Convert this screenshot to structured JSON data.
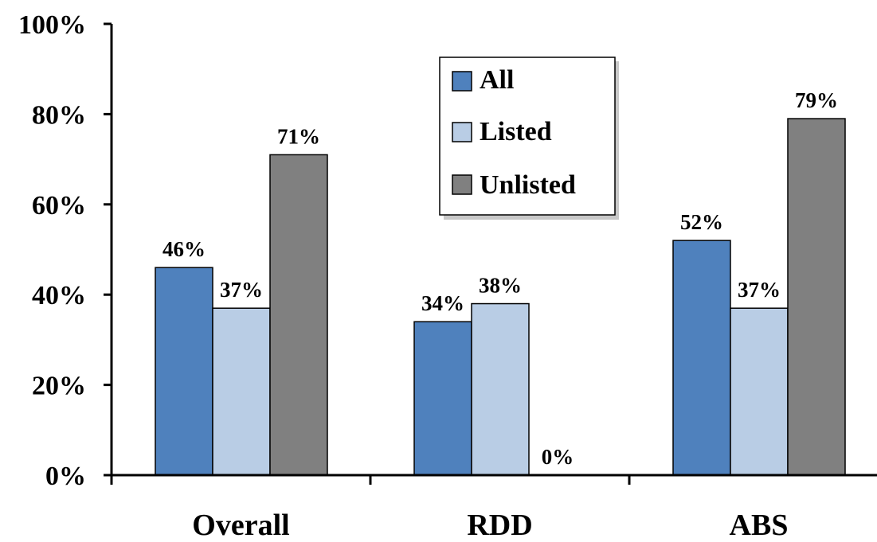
{
  "chart_data": {
    "type": "bar",
    "categories": [
      "Overall",
      "RDD",
      "ABS"
    ],
    "series": [
      {
        "name": "All",
        "values": [
          46,
          34,
          52
        ],
        "labels": [
          "46%",
          "34%",
          "52%"
        ]
      },
      {
        "name": "Listed",
        "values": [
          37,
          38,
          37
        ],
        "labels": [
          "37%",
          "38%",
          "37%"
        ]
      },
      {
        "name": "Unlisted",
        "values": [
          71,
          0,
          79
        ],
        "labels": [
          "71%",
          "0%",
          "79%"
        ]
      }
    ],
    "y_ticks": [
      "0%",
      "20%",
      "40%",
      "60%",
      "80%",
      "100%"
    ],
    "ylim": [
      0,
      100
    ],
    "grid": false,
    "legend_position": "top-center",
    "colors": {
      "All": "#4f81bd",
      "Listed": "#b9cde5",
      "Unlisted": "#808080"
    }
  }
}
